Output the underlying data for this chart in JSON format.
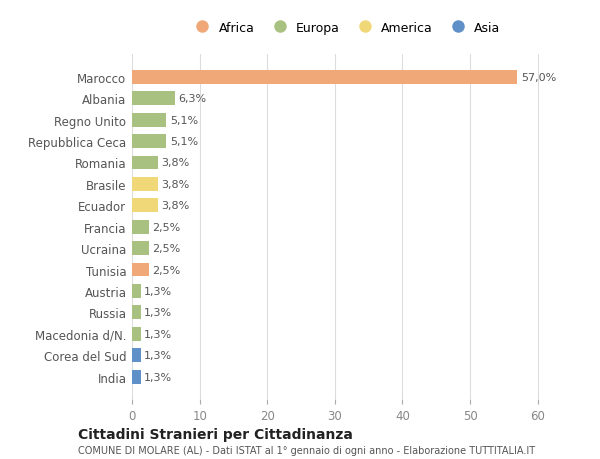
{
  "countries": [
    "Marocco",
    "Albania",
    "Regno Unito",
    "Repubblica Ceca",
    "Romania",
    "Brasile",
    "Ecuador",
    "Francia",
    "Ucraina",
    "Tunisia",
    "Austria",
    "Russia",
    "Macedonia d/N.",
    "Corea del Sud",
    "India"
  ],
  "values": [
    57.0,
    6.3,
    5.1,
    5.1,
    3.8,
    3.8,
    3.8,
    2.5,
    2.5,
    2.5,
    1.3,
    1.3,
    1.3,
    1.3,
    1.3
  ],
  "labels": [
    "57,0%",
    "6,3%",
    "5,1%",
    "5,1%",
    "3,8%",
    "3,8%",
    "3,8%",
    "2,5%",
    "2,5%",
    "2,5%",
    "1,3%",
    "1,3%",
    "1,3%",
    "1,3%",
    "1,3%"
  ],
  "continents": [
    "Africa",
    "Europa",
    "Europa",
    "Europa",
    "Europa",
    "America",
    "America",
    "Europa",
    "Europa",
    "Africa",
    "Europa",
    "Europa",
    "Europa",
    "Asia",
    "Asia"
  ],
  "colors": {
    "Africa": "#F0A878",
    "Europa": "#A8C080",
    "America": "#F0D878",
    "Asia": "#6090C8"
  },
  "legend_order": [
    "Africa",
    "Europa",
    "America",
    "Asia"
  ],
  "xlim": [
    0,
    63
  ],
  "xticks": [
    0,
    10,
    20,
    30,
    40,
    50,
    60
  ],
  "title1": "Cittadini Stranieri per Cittadinanza",
  "title2": "COMUNE DI MOLARE (AL) - Dati ISTAT al 1° gennaio di ogni anno - Elaborazione TUTTITALIA.IT",
  "background_color": "#ffffff",
  "grid_color": "#dddddd",
  "bar_height": 0.65
}
